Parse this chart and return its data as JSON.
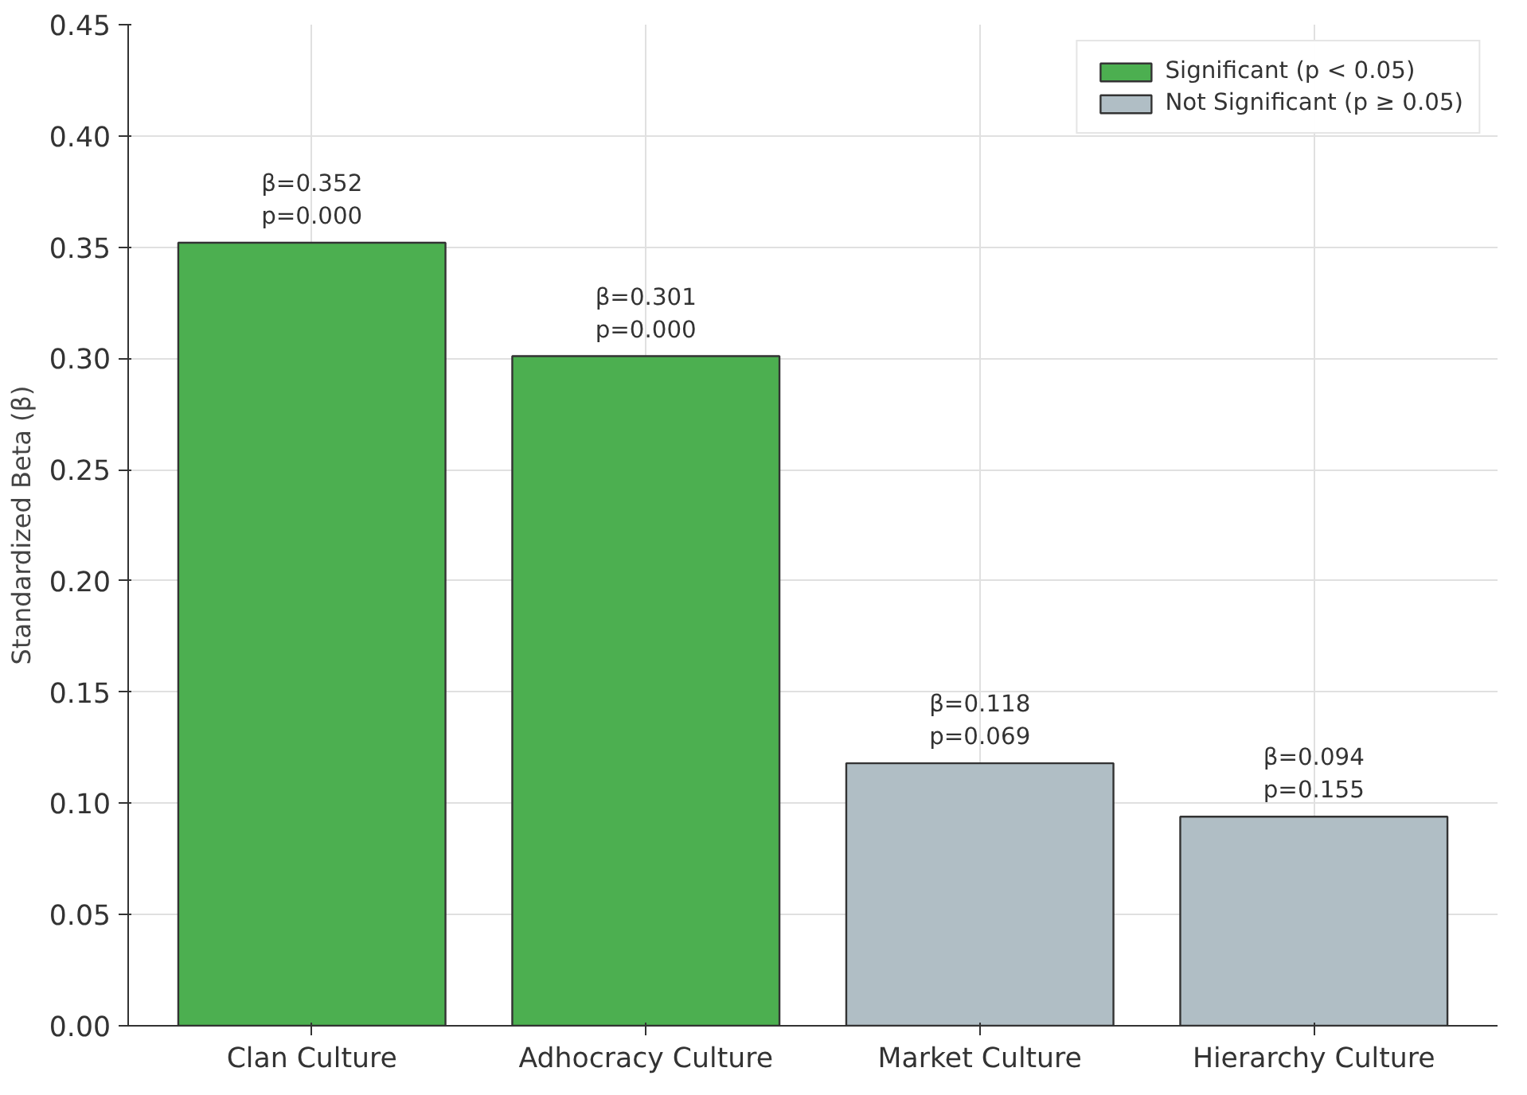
{
  "chart_data": {
    "type": "bar",
    "ylabel": "Standardized Beta (β)",
    "categories": [
      "Clan Culture",
      "Adhocracy Culture",
      "Market Culture",
      "Hierarchy Culture"
    ],
    "series": [
      {
        "name": "Significant (p < 0.05)",
        "color": "#4caf50",
        "values": [
          0.352,
          0.301,
          null,
          null
        ],
        "value_labels": [
          "β=0.352\np=0.000",
          "β=0.301\np=0.000",
          null,
          null
        ]
      },
      {
        "name": "Not Significant (p ≥ 0.05)",
        "color": "#b0bec5",
        "values": [
          null,
          null,
          0.118,
          0.094
        ],
        "value_labels": [
          null,
          null,
          "β=0.118\np=0.069",
          "β=0.094\np=0.155"
        ]
      }
    ],
    "ylim": [
      0,
      0.45
    ],
    "yticks": [
      {
        "value": 0,
        "label": "0.00"
      },
      {
        "value": 0.05,
        "label": "0.05"
      },
      {
        "value": 0.1,
        "label": "0.10"
      },
      {
        "value": 0.15,
        "label": "0.15"
      },
      {
        "value": 0.2,
        "label": "0.20"
      },
      {
        "value": 0.25,
        "label": "0.25"
      },
      {
        "value": 0.3,
        "label": "0.30"
      },
      {
        "value": 0.35,
        "label": "0.35"
      },
      {
        "value": 0.4,
        "label": "0.40"
      },
      {
        "value": 0.45,
        "label": "0.45"
      }
    ],
    "grid": true,
    "legend": "top right"
  }
}
